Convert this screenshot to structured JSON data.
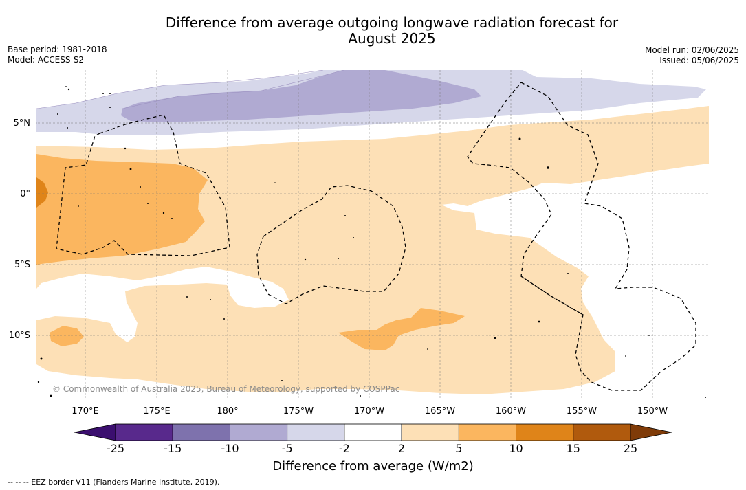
{
  "title_line1": "Difference from average outgoing longwave radiation forecast for",
  "title_line2": "August 2025",
  "base_period": "Base period: 1981-2018",
  "model": "Model: ACCESS-S2",
  "model_run": "Model run: 02/06/2025",
  "issued": "Issued: 05/06/2025",
  "credit": "© Commonwealth of Australia 2025, Bureau of Meteorology, supported by COSPPac",
  "colorbar_title": "Difference from average (W/m2)",
  "footnote": "--  --  -- EEZ border V11 (Flanders Marine Institute, 2019).",
  "lon_labels": [
    "170°E",
    "175°E",
    "180°",
    "175°W",
    "170°W",
    "165°W",
    "160°W",
    "155°W",
    "150°W"
  ],
  "lat_labels": [
    "5°N",
    "0°",
    "5°S",
    "10°S"
  ],
  "colorbar": {
    "tick_labels": [
      "-25",
      "-15",
      "-10",
      "-5",
      "-2",
      "2",
      "5",
      "10",
      "15",
      "25"
    ],
    "colors": [
      "#3b0f6f",
      "#58298c",
      "#7e72ad",
      "#b0aad2",
      "#d6d7ea",
      "#ffffff",
      "#fde0b6",
      "#fbb65f",
      "#df8419",
      "#b05a0d",
      "#7f3b08"
    ]
  },
  "map_data": {
    "region": "Tropical western/central Pacific",
    "extent_lon": [
      "167°E",
      "146°W"
    ],
    "extent_lat": [
      "8°N",
      "14.5°S"
    ],
    "grid_lon": [
      "170°E",
      "175°E",
      "180°",
      "175°W",
      "170°W",
      "165°W",
      "160°W",
      "155°W",
      "150°W"
    ],
    "grid_lat": [
      "5°N",
      "0°",
      "5°S",
      "10°S"
    ],
    "anomalies": [
      {
        "area": "north band 5°N–8°N",
        "range_wm2": "-5 to -2"
      },
      {
        "area": "north core 6°N–7°N, 178°E–167°W",
        "range_wm2": "-10 to -5"
      },
      {
        "area": "equatorial band 2°N–13°S",
        "range_wm2": "2 to 5"
      },
      {
        "area": "west 1°N–5°S, 167°E–177°E",
        "range_wm2": "5 to 10"
      },
      {
        "area": "west edge near 0°, 167°E",
        "range_wm2": "10 to 15"
      },
      {
        "area": "around 9°S–11°S, 170°W–164°W",
        "range_wm2": "5 to 10"
      }
    ]
  }
}
